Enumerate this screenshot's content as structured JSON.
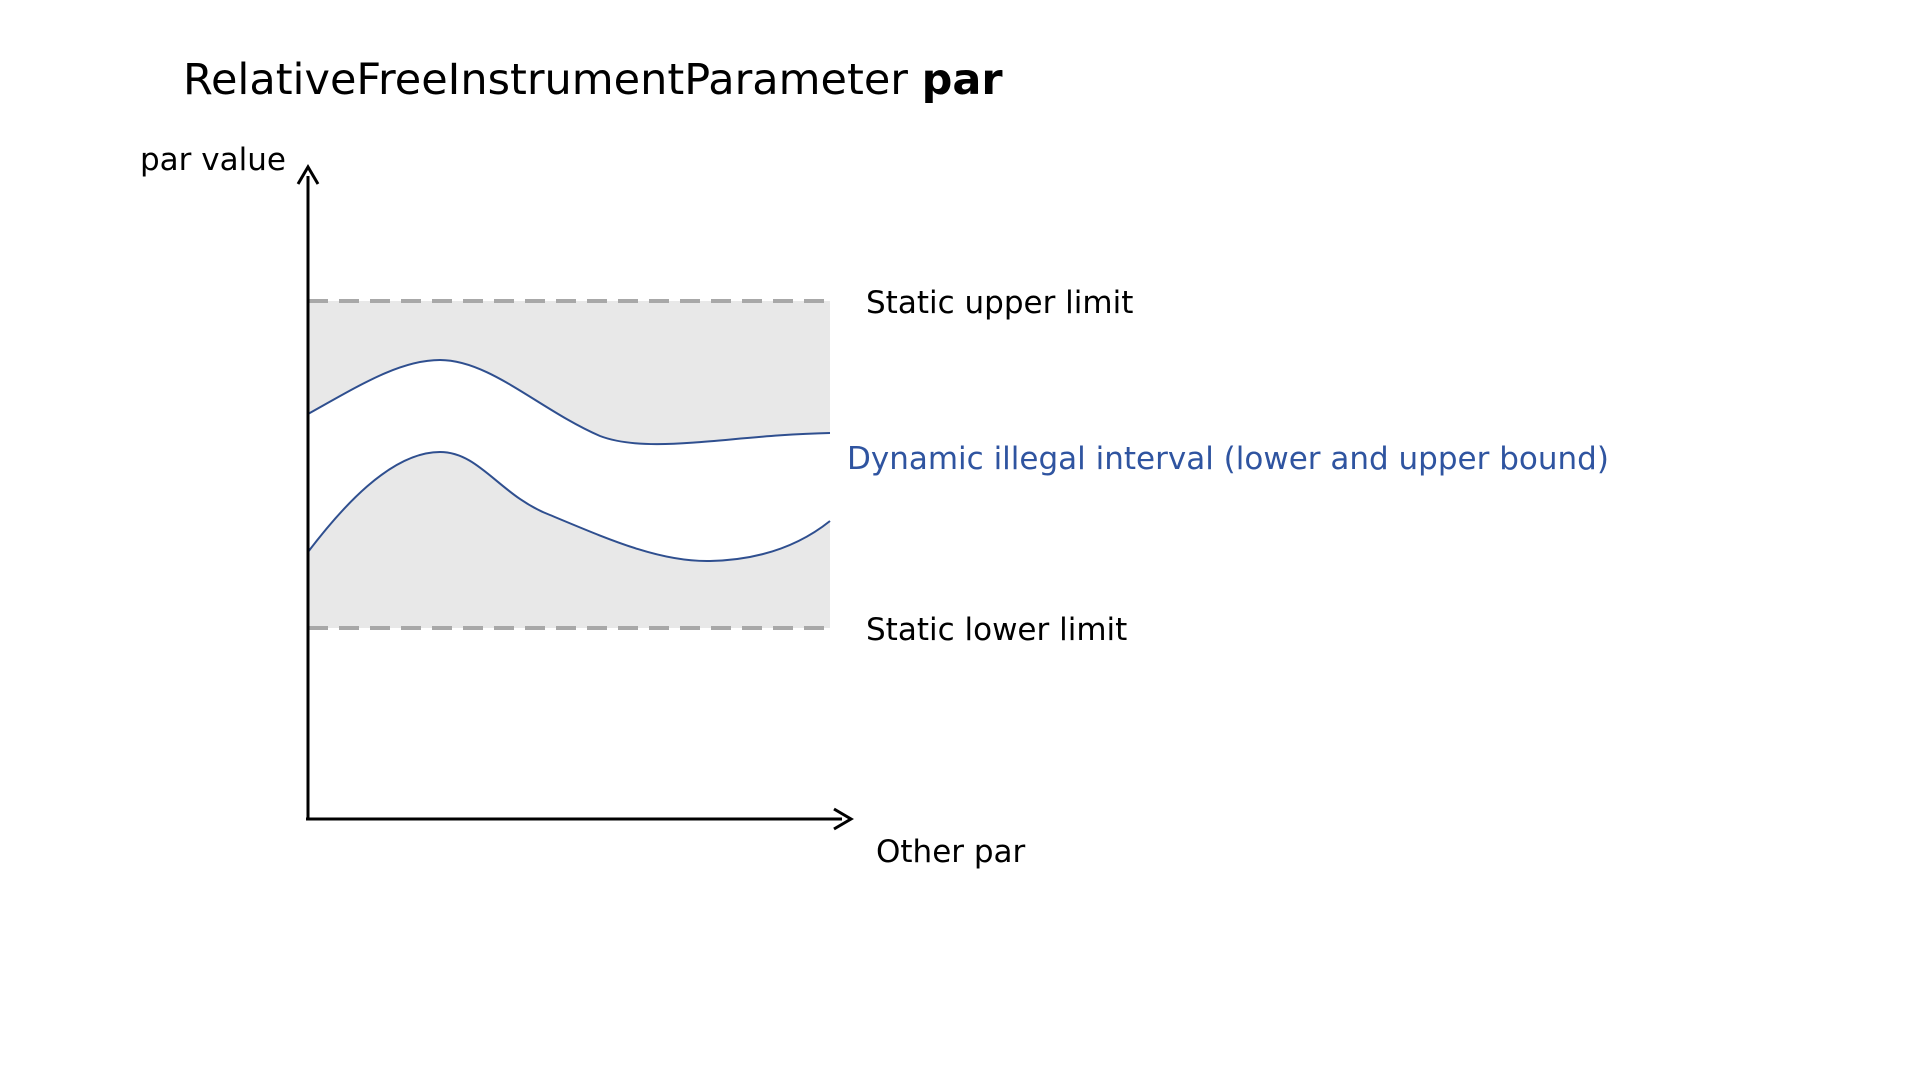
{
  "title": {
    "regular": "RelativeFreeInstrumentParameter ",
    "bold": "par"
  },
  "axes": {
    "y_label": "par value",
    "x_label": "Other par"
  },
  "limits": {
    "upper_label": "Static upper limit",
    "lower_label": "Static lower limit"
  },
  "dynamic_interval": {
    "label": "Dynamic illegal interval (lower and upper bound)"
  },
  "colors": {
    "band_fill": "#e8e8e8",
    "dashed_line": "#a8a8a8",
    "curve": "#2f4f8f",
    "dynamic_label": "#2f54a0",
    "axis": "#000000"
  }
}
